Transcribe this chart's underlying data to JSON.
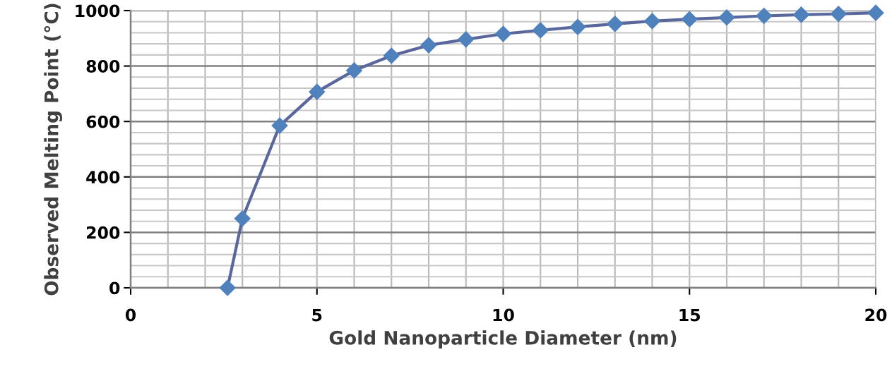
{
  "chart_data": {
    "type": "line",
    "xlabel": "Gold Nanoparticle Diameter (nm)",
    "ylabel": "Observed Melting Point (°C)",
    "x": [
      2.6,
      3,
      4,
      5,
      6,
      7,
      8,
      9,
      10,
      11,
      12,
      13,
      14,
      15,
      16,
      17,
      18,
      19,
      20
    ],
    "series": [
      {
        "color": "#4f81bd",
        "values": [
          0,
          250,
          585,
          707,
          784,
          837,
          875,
          896,
          916,
          929,
          941,
          952,
          962,
          969,
          975,
          981,
          985,
          988,
          992
        ]
      }
    ],
    "xlim": [
      0,
      20
    ],
    "xticks": [
      0,
      5,
      10,
      15,
      20
    ],
    "ylim": [
      0,
      1000
    ],
    "yticks": [
      0,
      200,
      400,
      600,
      800,
      1000
    ],
    "grid": true,
    "marker": "diamond",
    "line_style": "solid"
  }
}
